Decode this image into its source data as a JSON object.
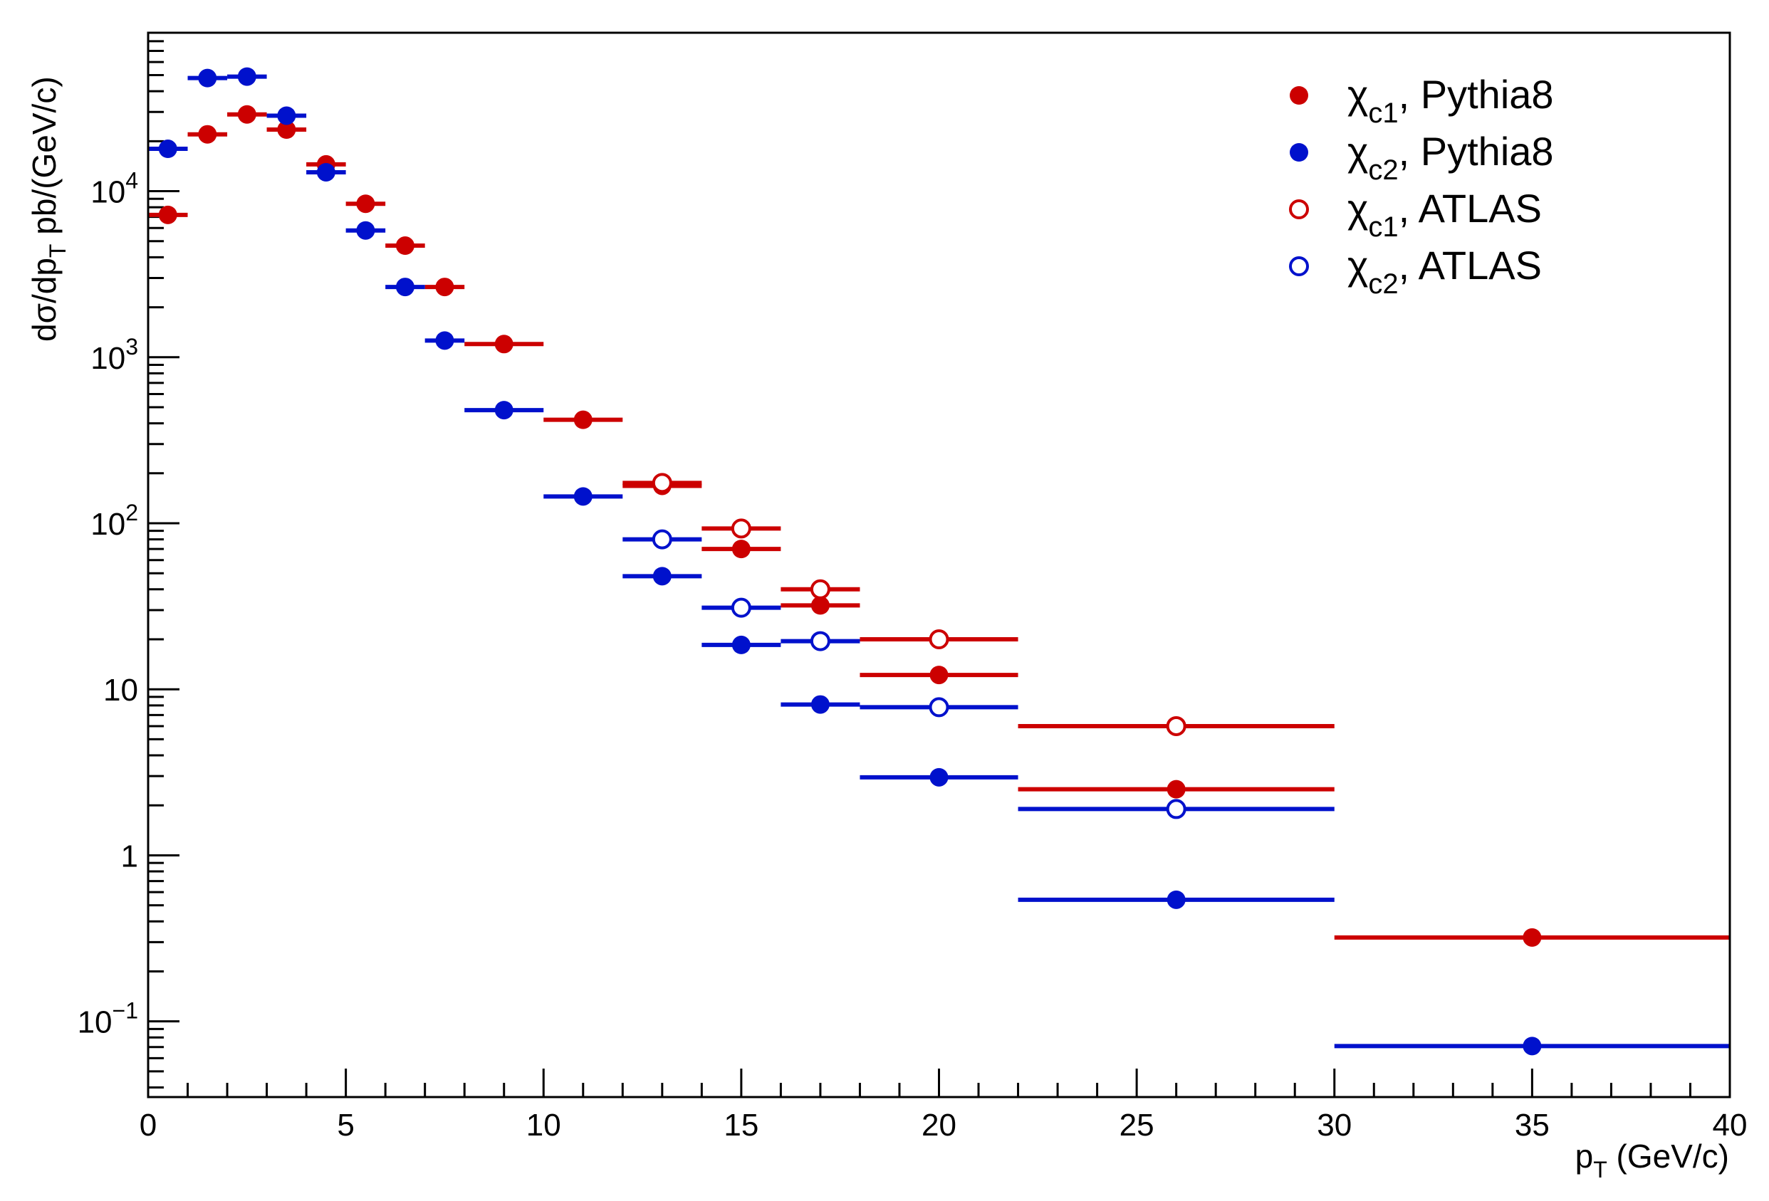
{
  "chart_data": {
    "type": "scatter",
    "xlabel": "p_T (GeV/c)",
    "ylabel": "dσ/dp_T pb/(GeV/c)",
    "xlim": [
      0,
      40
    ],
    "ylim": [
      0.035,
      90000
    ],
    "yscale": "log",
    "x_ticks": [
      "0",
      "5",
      "10",
      "15",
      "20",
      "25",
      "30",
      "35",
      "40"
    ],
    "y_ticks": [
      "10^-1",
      "1",
      "10",
      "10^2",
      "10^3",
      "10^4"
    ],
    "legend_position": "top-right",
    "grid": false,
    "series": [
      {
        "name": "χ_c1, Pythia8",
        "color": "#cc0000",
        "marker": "filled-circle",
        "points": [
          {
            "x": 0.5,
            "xlo": 0,
            "xhi": 1,
            "y": 7200
          },
          {
            "x": 1.5,
            "xlo": 1,
            "xhi": 2,
            "y": 22000
          },
          {
            "x": 2.5,
            "xlo": 2,
            "xhi": 3,
            "y": 29000
          },
          {
            "x": 3.5,
            "xlo": 3,
            "xhi": 4,
            "y": 23500
          },
          {
            "x": 4.5,
            "xlo": 4,
            "xhi": 5,
            "y": 14500
          },
          {
            "x": 5.5,
            "xlo": 5,
            "xhi": 6,
            "y": 8400
          },
          {
            "x": 6.5,
            "xlo": 6,
            "xhi": 7,
            "y": 4700
          },
          {
            "x": 7.5,
            "xlo": 7,
            "xhi": 8,
            "y": 2650
          },
          {
            "x": 9,
            "xlo": 8,
            "xhi": 10,
            "y": 1200
          },
          {
            "x": 11,
            "xlo": 10,
            "xhi": 12,
            "y": 420
          },
          {
            "x": 13,
            "xlo": 12,
            "xhi": 14,
            "y": 168
          },
          {
            "x": 15,
            "xlo": 14,
            "xhi": 16,
            "y": 70
          },
          {
            "x": 17,
            "xlo": 16,
            "xhi": 18,
            "y": 32
          },
          {
            "x": 20,
            "xlo": 18,
            "xhi": 22,
            "y": 12.2
          },
          {
            "x": 26,
            "xlo": 22,
            "xhi": 30,
            "y": 2.5
          },
          {
            "x": 35,
            "xlo": 30,
            "xhi": 40,
            "y": 0.32
          }
        ]
      },
      {
        "name": "χ_c2, Pythia8",
        "color": "#0011cc",
        "marker": "filled-circle",
        "points": [
          {
            "x": 0.5,
            "xlo": 0,
            "xhi": 1,
            "y": 18000
          },
          {
            "x": 1.5,
            "xlo": 1,
            "xhi": 2,
            "y": 48000
          },
          {
            "x": 2.5,
            "xlo": 2,
            "xhi": 3,
            "y": 49000
          },
          {
            "x": 3.5,
            "xlo": 3,
            "xhi": 4,
            "y": 28500
          },
          {
            "x": 4.5,
            "xlo": 4,
            "xhi": 5,
            "y": 13000
          },
          {
            "x": 5.5,
            "xlo": 5,
            "xhi": 6,
            "y": 5800
          },
          {
            "x": 6.5,
            "xlo": 6,
            "xhi": 7,
            "y": 2650
          },
          {
            "x": 7.5,
            "xlo": 7,
            "xhi": 8,
            "y": 1260
          },
          {
            "x": 9,
            "xlo": 8,
            "xhi": 10,
            "y": 480
          },
          {
            "x": 11,
            "xlo": 10,
            "xhi": 12,
            "y": 145
          },
          {
            "x": 13,
            "xlo": 12,
            "xhi": 14,
            "y": 48
          },
          {
            "x": 15,
            "xlo": 14,
            "xhi": 16,
            "y": 18.5
          },
          {
            "x": 17,
            "xlo": 16,
            "xhi": 18,
            "y": 8.1
          },
          {
            "x": 20,
            "xlo": 18,
            "xhi": 22,
            "y": 2.95
          },
          {
            "x": 26,
            "xlo": 22,
            "xhi": 30,
            "y": 0.54
          },
          {
            "x": 35,
            "xlo": 30,
            "xhi": 40,
            "y": 0.071
          }
        ]
      },
      {
        "name": "χ_c1, ATLAS",
        "color": "#cc0000",
        "marker": "open-circle",
        "points": [
          {
            "x": 13,
            "xlo": 12,
            "xhi": 14,
            "y": 175
          },
          {
            "x": 15,
            "xlo": 14,
            "xhi": 16,
            "y": 93
          },
          {
            "x": 17,
            "xlo": 16,
            "xhi": 18,
            "y": 40
          },
          {
            "x": 20,
            "xlo": 18,
            "xhi": 22,
            "y": 20
          },
          {
            "x": 26,
            "xlo": 22,
            "xhi": 30,
            "y": 6.0
          }
        ]
      },
      {
        "name": "χ_c2, ATLAS",
        "color": "#0011cc",
        "marker": "open-circle",
        "points": [
          {
            "x": 13,
            "xlo": 12,
            "xhi": 14,
            "y": 80
          },
          {
            "x": 15,
            "xlo": 14,
            "xhi": 16,
            "y": 31
          },
          {
            "x": 17,
            "xlo": 16,
            "xhi": 18,
            "y": 19.5
          },
          {
            "x": 20,
            "xlo": 18,
            "xhi": 22,
            "y": 7.8
          },
          {
            "x": 26,
            "xlo": 22,
            "xhi": 30,
            "y": 1.9
          }
        ]
      }
    ]
  },
  "labels": {
    "x_axis_main": "p",
    "x_axis_sub": "T",
    "x_axis_rest": " (GeV/c)",
    "y_axis_pre": "dσ/dp",
    "y_axis_sub": "T",
    "y_axis_post": " pb/(GeV/c)"
  },
  "legend": [
    {
      "chi": "χ",
      "sub": "c1",
      "text": ", Pythia8",
      "color": "#cc0000",
      "marker": "filled-circle"
    },
    {
      "chi": "χ",
      "sub": "c2",
      "text": ", Pythia8",
      "color": "#0011cc",
      "marker": "filled-circle"
    },
    {
      "chi": "χ",
      "sub": "c1",
      "text": ", ATLAS",
      "color": "#cc0000",
      "marker": "open-circle"
    },
    {
      "chi": "χ",
      "sub": "c2",
      "text": ", ATLAS",
      "color": "#0011cc",
      "marker": "open-circle"
    }
  ]
}
